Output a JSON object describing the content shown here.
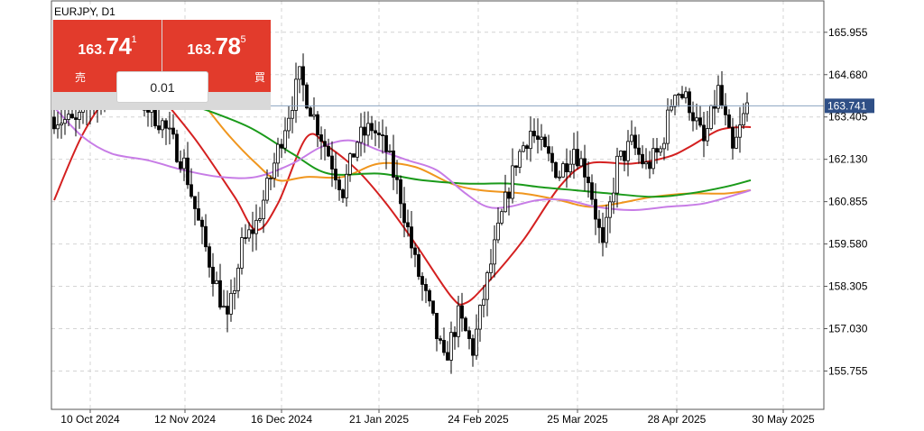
{
  "symbol_label": "EURJPY, D1",
  "trade_panel": {
    "sell": {
      "price_prefix": "163.",
      "price_big": "74",
      "price_sup": "1",
      "label": "売"
    },
    "buy": {
      "price_prefix": "163.",
      "price_big": "78",
      "price_sup": "5",
      "label": "買"
    },
    "lot": "0.01"
  },
  "current_price_label": "163.741",
  "colors": {
    "bull": "#ffffff",
    "bear": "#000000",
    "trade_red": "#e23b2c",
    "ma_red": "#d42020",
    "ma_orange": "#f0961e",
    "ma_green": "#1a9a1a",
    "ma_violet": "#c77ce6",
    "price_line": "#8aa2c0",
    "price_tag": "#2f4f86"
  },
  "chart_data": {
    "type": "candlestick",
    "title": "EURJPY, D1",
    "y_ticks": [
      165.955,
      164.68,
      163.405,
      162.13,
      160.855,
      159.58,
      158.305,
      157.03,
      155.755
    ],
    "x_tick_labels": [
      "10 Oct 2024",
      "12 Nov 2024",
      "16 Dec 2024",
      "21 Jan 2025",
      "24 Feb 2025",
      "25 Mar 2025",
      "28 Apr 2025",
      "30 May 2025"
    ],
    "ylim": [
      154.6,
      166.9
    ],
    "current_price": 163.741,
    "grid": true,
    "moving_averages": [
      {
        "color": "red",
        "points": [
          [
            0,
            160.9
          ],
          [
            8,
            162.9
          ],
          [
            16,
            164.1
          ],
          [
            26,
            164.5
          ],
          [
            32,
            163.7
          ],
          [
            40,
            162.6
          ],
          [
            50,
            161.0
          ],
          [
            56,
            160.0
          ],
          [
            62,
            160.8
          ],
          [
            70,
            162.8
          ],
          [
            76,
            162.5
          ],
          [
            84,
            161.8
          ],
          [
            92,
            160.8
          ],
          [
            100,
            159.6
          ],
          [
            110,
            158.0
          ],
          [
            114,
            157.8
          ],
          [
            120,
            158.4
          ],
          [
            130,
            159.7
          ],
          [
            140,
            161.3
          ],
          [
            148,
            162.0
          ],
          [
            160,
            162.0
          ],
          [
            170,
            162.2
          ],
          [
            176,
            162.5
          ],
          [
            184,
            163.0
          ],
          [
            190,
            163.1
          ],
          [
            193,
            163.1
          ]
        ]
      },
      {
        "color": "orange",
        "points": [
          [
            40,
            164.0
          ],
          [
            48,
            162.9
          ],
          [
            56,
            162.0
          ],
          [
            62,
            161.5
          ],
          [
            70,
            161.6
          ],
          [
            80,
            161.6
          ],
          [
            90,
            162.0
          ],
          [
            100,
            161.9
          ],
          [
            110,
            161.4
          ],
          [
            118,
            161.2
          ],
          [
            130,
            161.1
          ],
          [
            140,
            160.9
          ],
          [
            148,
            160.7
          ],
          [
            156,
            160.8
          ],
          [
            166,
            161.0
          ],
          [
            176,
            161.1
          ],
          [
            186,
            161.1
          ],
          [
            193,
            161.2
          ]
        ]
      },
      {
        "color": "green",
        "points": [
          [
            40,
            163.7
          ],
          [
            54,
            163.1
          ],
          [
            66,
            162.3
          ],
          [
            76,
            161.7
          ],
          [
            90,
            161.7
          ],
          [
            102,
            161.5
          ],
          [
            114,
            161.4
          ],
          [
            126,
            161.4
          ],
          [
            134,
            161.3
          ],
          [
            144,
            161.2
          ],
          [
            154,
            161.1
          ],
          [
            166,
            161.0
          ],
          [
            176,
            161.1
          ],
          [
            186,
            161.3
          ],
          [
            193,
            161.5
          ]
        ]
      },
      {
        "color": "violet",
        "points": [
          [
            0,
            163.7
          ],
          [
            8,
            162.8
          ],
          [
            16,
            162.3
          ],
          [
            26,
            162.1
          ],
          [
            36,
            161.8
          ],
          [
            46,
            161.6
          ],
          [
            56,
            161.6
          ],
          [
            66,
            162.0
          ],
          [
            74,
            162.5
          ],
          [
            82,
            162.7
          ],
          [
            90,
            162.4
          ],
          [
            98,
            162.1
          ],
          [
            106,
            161.8
          ],
          [
            114,
            161.1
          ],
          [
            120,
            160.7
          ],
          [
            126,
            160.7
          ],
          [
            134,
            160.9
          ],
          [
            142,
            160.9
          ],
          [
            150,
            160.7
          ],
          [
            160,
            160.6
          ],
          [
            170,
            160.7
          ],
          [
            180,
            160.8
          ],
          [
            190,
            161.1
          ],
          [
            193,
            161.2
          ]
        ]
      }
    ]
  }
}
